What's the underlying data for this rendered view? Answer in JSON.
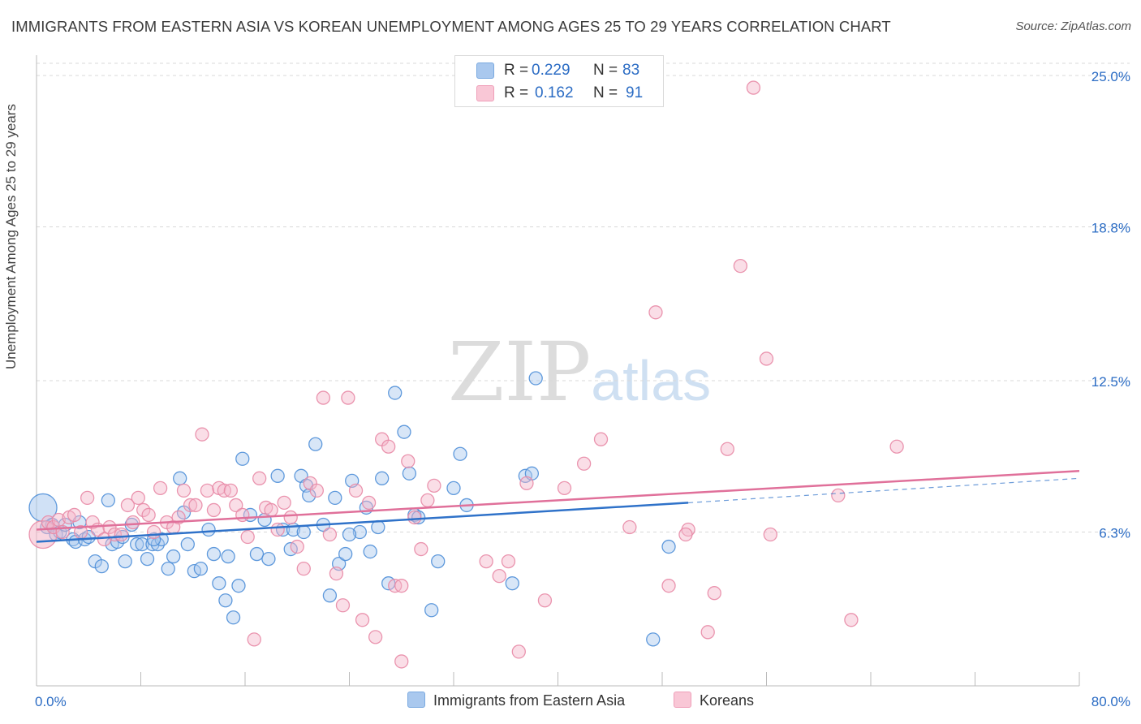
{
  "header": {
    "title": "IMMIGRANTS FROM EASTERN ASIA VS KOREAN UNEMPLOYMENT AMONG AGES 25 TO 29 YEARS CORRELATION CHART",
    "source": "Source: ZipAtlas.com"
  },
  "watermark": {
    "part1": "ZIP",
    "part2": "atlas"
  },
  "colors": {
    "blue_fill": "#a9c8ee",
    "blue_stroke": "#4f8fd8",
    "blue_line": "#2f72c9",
    "pink_fill": "#f4b6c9",
    "pink_stroke": "#e889a6",
    "pink_line": "#e0709a",
    "axis_label": "#2b6cc4",
    "grid": "#d8d8d8"
  },
  "legend": {
    "rows": [
      {
        "r_label": "R =",
        "r_value": "0.229",
        "n_label": "N =",
        "n_value": "83",
        "color": "#a9c8ee"
      },
      {
        "r_label": "R =",
        "r_value": "0.162",
        "n_label": "N =",
        "n_value": "91",
        "color": "#f9c7d6"
      }
    ],
    "bottom": [
      {
        "label": "Immigrants from Eastern Asia",
        "color": "#a9c8ee"
      },
      {
        "label": "Koreans",
        "color": "#f9c7d6"
      }
    ]
  },
  "chart_data": {
    "type": "scatter",
    "title": "IMMIGRANTS FROM EASTERN ASIA VS KOREAN UNEMPLOYMENT AMONG AGES 25 TO 29 YEARS CORRELATION CHART",
    "xlabel": "",
    "ylabel": "Unemployment Among Ages 25 to 29 years",
    "xlim": [
      0,
      80
    ],
    "ylim": [
      0,
      25.5
    ],
    "x_tick_labels": [
      "0.0%",
      "80.0%"
    ],
    "y_ticks": [
      6.3,
      12.5,
      18.8,
      25.0
    ],
    "y_tick_labels": [
      "6.3%",
      "12.5%",
      "18.8%",
      "25.0%"
    ],
    "grid": true,
    "series": [
      {
        "name": "Immigrants from Eastern Asia",
        "R": 0.229,
        "N": 83,
        "trend": {
          "x": [
            0,
            50
          ],
          "y": [
            5.9,
            7.5
          ]
        },
        "trend_extension": {
          "x": [
            50,
            80
          ],
          "y": [
            7.5,
            8.5
          ]
        },
        "points": [
          [
            0.5,
            7.3
          ],
          [
            0.8,
            6.5
          ],
          [
            1.2,
            6.6
          ],
          [
            1.5,
            6.2
          ],
          [
            1.8,
            6.3
          ],
          [
            2.2,
            6.6
          ],
          [
            2.8,
            6.0
          ],
          [
            3.0,
            5.9
          ],
          [
            3.3,
            6.7
          ],
          [
            3.7,
            6.0
          ],
          [
            4.0,
            6.1
          ],
          [
            4.5,
            5.1
          ],
          [
            5.0,
            4.9
          ],
          [
            5.5,
            7.6
          ],
          [
            5.8,
            5.8
          ],
          [
            6.2,
            5.9
          ],
          [
            6.8,
            5.1
          ],
          [
            7.3,
            6.6
          ],
          [
            7.7,
            5.8
          ],
          [
            8.1,
            5.8
          ],
          [
            8.5,
            5.2
          ],
          [
            8.9,
            5.8
          ],
          [
            9.3,
            5.8
          ],
          [
            9.6,
            6.0
          ],
          [
            10.1,
            4.8
          ],
          [
            10.5,
            5.3
          ],
          [
            11.0,
            8.5
          ],
          [
            11.3,
            7.1
          ],
          [
            11.6,
            5.8
          ],
          [
            12.1,
            4.7
          ],
          [
            12.6,
            4.8
          ],
          [
            13.2,
            6.4
          ],
          [
            13.6,
            5.4
          ],
          [
            14.0,
            4.2
          ],
          [
            14.7,
            5.3
          ],
          [
            15.1,
            2.8
          ],
          [
            15.5,
            4.1
          ],
          [
            15.8,
            9.3
          ],
          [
            16.4,
            7.0
          ],
          [
            16.9,
            5.4
          ],
          [
            17.5,
            6.8
          ],
          [
            17.8,
            5.2
          ],
          [
            18.5,
            8.6
          ],
          [
            18.9,
            6.4
          ],
          [
            19.5,
            5.6
          ],
          [
            19.7,
            6.4
          ],
          [
            20.3,
            8.6
          ],
          [
            20.7,
            8.2
          ],
          [
            20.9,
            7.8
          ],
          [
            21.4,
            9.9
          ],
          [
            22.0,
            6.6
          ],
          [
            22.5,
            3.7
          ],
          [
            22.9,
            7.7
          ],
          [
            23.2,
            5.0
          ],
          [
            23.7,
            5.4
          ],
          [
            24.2,
            8.4
          ],
          [
            24.8,
            6.3
          ],
          [
            25.3,
            7.3
          ],
          [
            25.6,
            5.5
          ],
          [
            26.2,
            6.5
          ],
          [
            26.5,
            8.5
          ],
          [
            27.0,
            4.2
          ],
          [
            27.5,
            12.0
          ],
          [
            28.2,
            10.4
          ],
          [
            28.6,
            8.7
          ],
          [
            29.0,
            7.0
          ],
          [
            29.3,
            6.9
          ],
          [
            30.3,
            3.1
          ],
          [
            30.8,
            5.1
          ],
          [
            32.0,
            8.1
          ],
          [
            32.5,
            9.5
          ],
          [
            33.0,
            7.4
          ],
          [
            36.5,
            4.2
          ],
          [
            37.5,
            8.6
          ],
          [
            38.0,
            8.7
          ],
          [
            38.3,
            12.6
          ],
          [
            47.3,
            1.9
          ],
          [
            48.5,
            5.7
          ],
          [
            24.0,
            6.2
          ],
          [
            20.5,
            6.3
          ],
          [
            14.5,
            3.5
          ],
          [
            9.0,
            6.0
          ],
          [
            6.6,
            6.1
          ]
        ]
      },
      {
        "name": "Koreans",
        "R": 0.162,
        "N": 91,
        "trend": {
          "x": [
            0,
            80
          ],
          "y": [
            6.4,
            8.8
          ]
        },
        "points": [
          [
            0.5,
            6.2
          ],
          [
            0.9,
            6.7
          ],
          [
            1.3,
            6.5
          ],
          [
            1.7,
            6.8
          ],
          [
            2.0,
            6.3
          ],
          [
            2.5,
            6.9
          ],
          [
            2.9,
            7.0
          ],
          [
            3.4,
            6.3
          ],
          [
            3.9,
            7.7
          ],
          [
            4.3,
            6.7
          ],
          [
            4.7,
            6.4
          ],
          [
            5.2,
            6.0
          ],
          [
            5.6,
            6.5
          ],
          [
            6.0,
            6.2
          ],
          [
            6.5,
            6.2
          ],
          [
            7.0,
            7.4
          ],
          [
            7.4,
            6.7
          ],
          [
            7.8,
            7.7
          ],
          [
            8.2,
            7.2
          ],
          [
            8.6,
            7.0
          ],
          [
            9.0,
            6.3
          ],
          [
            9.5,
            8.1
          ],
          [
            10.0,
            6.7
          ],
          [
            10.5,
            6.5
          ],
          [
            10.9,
            6.9
          ],
          [
            11.3,
            8.0
          ],
          [
            11.8,
            7.4
          ],
          [
            12.2,
            7.4
          ],
          [
            12.7,
            10.3
          ],
          [
            13.1,
            8.0
          ],
          [
            13.6,
            7.2
          ],
          [
            14.0,
            8.1
          ],
          [
            14.4,
            8.0
          ],
          [
            14.9,
            8.0
          ],
          [
            15.3,
            7.4
          ],
          [
            15.8,
            7.0
          ],
          [
            16.2,
            6.1
          ],
          [
            16.7,
            1.9
          ],
          [
            17.1,
            8.5
          ],
          [
            17.6,
            7.3
          ],
          [
            18.0,
            7.2
          ],
          [
            18.5,
            6.4
          ],
          [
            19.0,
            7.5
          ],
          [
            19.5,
            6.9
          ],
          [
            20.0,
            5.7
          ],
          [
            20.5,
            4.8
          ],
          [
            21.0,
            8.3
          ],
          [
            21.5,
            8.0
          ],
          [
            22.0,
            11.8
          ],
          [
            22.5,
            6.2
          ],
          [
            23.0,
            4.6
          ],
          [
            23.5,
            3.3
          ],
          [
            23.9,
            11.8
          ],
          [
            24.5,
            8.0
          ],
          [
            25.0,
            2.7
          ],
          [
            25.5,
            7.5
          ],
          [
            26.0,
            2.0
          ],
          [
            26.5,
            10.1
          ],
          [
            27.0,
            9.8
          ],
          [
            27.5,
            4.1
          ],
          [
            28.0,
            1.0
          ],
          [
            28.5,
            9.2
          ],
          [
            29.0,
            6.9
          ],
          [
            29.5,
            5.6
          ],
          [
            30.0,
            7.6
          ],
          [
            30.5,
            8.2
          ],
          [
            34.5,
            5.1
          ],
          [
            35.5,
            4.5
          ],
          [
            36.2,
            5.1
          ],
          [
            37.0,
            1.4
          ],
          [
            37.6,
            8.3
          ],
          [
            39.0,
            3.5
          ],
          [
            40.5,
            8.1
          ],
          [
            42.0,
            9.1
          ],
          [
            43.3,
            10.1
          ],
          [
            45.5,
            6.5
          ],
          [
            47.5,
            15.3
          ],
          [
            48.5,
            4.1
          ],
          [
            50.0,
            6.4
          ],
          [
            51.5,
            2.2
          ],
          [
            52.0,
            3.8
          ],
          [
            53.0,
            9.7
          ],
          [
            54.0,
            17.2
          ],
          [
            55.0,
            24.5
          ],
          [
            56.0,
            13.4
          ],
          [
            56.3,
            6.2
          ],
          [
            61.5,
            7.8
          ],
          [
            62.5,
            2.7
          ],
          [
            66.0,
            9.8
          ],
          [
            49.8,
            6.2
          ],
          [
            28.0,
            4.1
          ]
        ]
      }
    ]
  }
}
